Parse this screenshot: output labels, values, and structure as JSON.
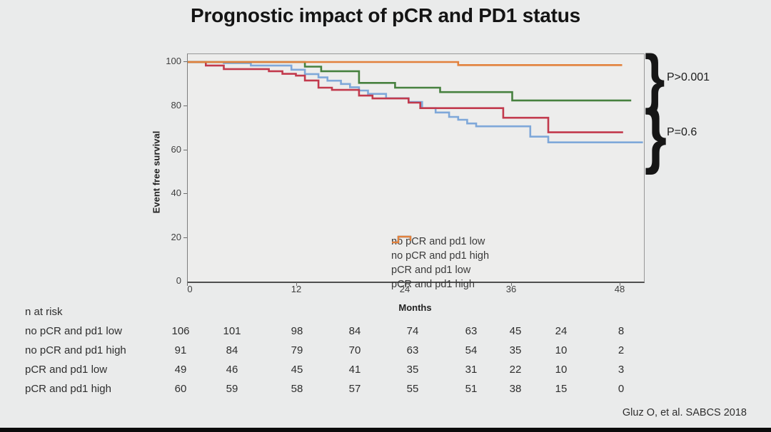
{
  "chart_data": {
    "type": "line",
    "subtype": "kaplan-meier-step",
    "title": "Prognostic impact of pCR and PD1 status",
    "xlabel": "Months",
    "ylabel": "Event free survival",
    "xlim": [
      0,
      48
    ],
    "ylim": [
      0,
      100
    ],
    "x_ticks": [
      0,
      12,
      24,
      36,
      48
    ],
    "y_ticks_top_to_bottom": [
      "100",
      "80",
      "60",
      "40",
      "20",
      "0"
    ],
    "grid": false,
    "legend_position": "inside-left",
    "series": [
      {
        "name": "no pCR and pd1 low",
        "color": "#7fa8d9",
        "end_month": 50.5,
        "points": [
          [
            0,
            100
          ],
          [
            4,
            99.5
          ],
          [
            7,
            98.4
          ],
          [
            11.5,
            96.5
          ],
          [
            13,
            94.5
          ],
          [
            14.5,
            93
          ],
          [
            15.5,
            91.5
          ],
          [
            17,
            90
          ],
          [
            18,
            88.5
          ],
          [
            19,
            87
          ],
          [
            20,
            85.5
          ],
          [
            22,
            83.5
          ],
          [
            24.5,
            81.8
          ],
          [
            26,
            79
          ],
          [
            27.5,
            77
          ],
          [
            29,
            75
          ],
          [
            30,
            73.7
          ],
          [
            31,
            72
          ],
          [
            32,
            70.7
          ],
          [
            38,
            66
          ],
          [
            40,
            63.4
          ]
        ]
      },
      {
        "name": "no pCR and pd1 high",
        "color": "#c23a4d",
        "end_month": 48.3,
        "points": [
          [
            0,
            100
          ],
          [
            2,
            98.4
          ],
          [
            4,
            96.8
          ],
          [
            9,
            95.8
          ],
          [
            10.5,
            94.6
          ],
          [
            12,
            93.8
          ],
          [
            13,
            91.6
          ],
          [
            14.5,
            88.3
          ],
          [
            16,
            87.3
          ],
          [
            19,
            84.7
          ],
          [
            20.5,
            83.4
          ],
          [
            24.5,
            81.5
          ],
          [
            25.8,
            79
          ],
          [
            35,
            74.6
          ],
          [
            40,
            68
          ]
        ]
      },
      {
        "name": "pCR and pd1 low",
        "color": "#47813f",
        "end_month": 49.2,
        "points": [
          [
            0,
            100
          ],
          [
            13,
            97.9
          ],
          [
            14.8,
            95.8
          ],
          [
            19,
            90.5
          ],
          [
            23,
            88.3
          ],
          [
            28,
            86.3
          ],
          [
            36,
            82.5
          ]
        ]
      },
      {
        "name": "pCR and pd1 high",
        "color": "#e2813c",
        "end_month": 48.2,
        "points": [
          [
            0,
            100
          ],
          [
            30,
            98.6
          ]
        ]
      }
    ],
    "annotations": [
      {
        "glyph": "}",
        "label": "P>0.001",
        "applies_to": "pCR curves"
      },
      {
        "glyph": "}",
        "label": "P=0.6",
        "applies_to": "no pCR curves"
      }
    ],
    "n_at_risk": {
      "header": "n at risk",
      "interval_months": 6,
      "rows": [
        {
          "label": "no pCR and pd1 low",
          "values": [
            106,
            101,
            98,
            84,
            74,
            63,
            45,
            24,
            8
          ]
        },
        {
          "label": "no pCR and pd1 high",
          "values": [
            91,
            84,
            79,
            70,
            63,
            54,
            35,
            10,
            2
          ]
        },
        {
          "label": "pCR and pd1 low",
          "values": [
            49,
            46,
            45,
            41,
            35,
            31,
            22,
            10,
            3
          ]
        },
        {
          "label": "pCR and pd1 high",
          "values": [
            60,
            59,
            58,
            57,
            55,
            51,
            38,
            15,
            0
          ]
        }
      ]
    }
  },
  "slide": {
    "citation": "Gluz O, et al. SABCS 2018"
  }
}
